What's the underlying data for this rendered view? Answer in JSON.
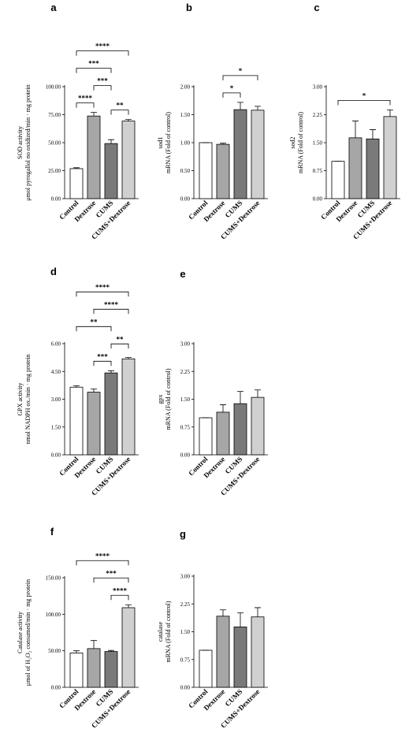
{
  "chart_data": [
    {
      "type": "bar",
      "panel": "a",
      "ylabel": [
        "SOD activity",
        "μmol pyrogallol no oxidized/min · mg protein"
      ],
      "categories": [
        "Control",
        "Dextrose",
        "CUMS",
        "CUMS+Dextrose"
      ],
      "values": [
        26.8,
        73.8,
        49.2,
        69.3
      ],
      "errors": [
        0.8,
        3.2,
        3.5,
        1.4
      ],
      "colors": [
        "#ffffff",
        "#a6a6a6",
        "#7a7a7a",
        "#d0d0d0"
      ],
      "ylim": [
        0,
        100
      ],
      "yticks": [
        {
          "value": 0,
          "label": "0.00"
        },
        {
          "value": 25,
          "label": "25.00"
        },
        {
          "value": 50,
          "label": "50.00"
        },
        {
          "value": 75,
          "label": "75.00"
        },
        {
          "value": 100,
          "label": "100.00"
        }
      ],
      "significance": [
        {
          "pair": [
            0,
            1
          ],
          "label": "****"
        },
        {
          "pair": [
            2,
            3
          ],
          "label": "**"
        },
        {
          "pair": [
            1,
            2
          ],
          "label": "***"
        },
        {
          "pair": [
            0,
            2
          ],
          "label": "***"
        },
        {
          "pair": [
            0,
            3
          ],
          "label": "****"
        }
      ]
    },
    {
      "type": "bar",
      "panel": "b",
      "ylabel": [
        "sod1",
        "mRNA (Fold of control)"
      ],
      "categories": [
        "Control",
        "Dextrose",
        "CUMS",
        "CUMS+Dextrose"
      ],
      "values": [
        1.0,
        0.97,
        1.59,
        1.58
      ],
      "errors": [
        0,
        0.02,
        0.13,
        0.07
      ],
      "colors": [
        "#ffffff",
        "#a6a6a6",
        "#7a7a7a",
        "#d0d0d0"
      ],
      "ylim": [
        0,
        2
      ],
      "yticks": [
        {
          "value": 0,
          "label": "0.00"
        },
        {
          "value": 0.5,
          "label": "0.50"
        },
        {
          "value": 1,
          "label": "1.00"
        },
        {
          "value": 1.5,
          "label": "1.50"
        },
        {
          "value": 2,
          "label": "2.00"
        }
      ],
      "significance": [
        {
          "pair": [
            1,
            2
          ],
          "label": "*"
        },
        {
          "pair": [
            1,
            3
          ],
          "label": "*"
        }
      ]
    },
    {
      "type": "bar",
      "panel": "c",
      "ylabel": [
        "sod2",
        "mRNA (Fold of control)"
      ],
      "categories": [
        "Control",
        "Dextrose",
        "CUMS",
        "CUMS+Dextrose"
      ],
      "values": [
        1.0,
        1.63,
        1.6,
        2.2
      ],
      "errors": [
        0,
        0.45,
        0.25,
        0.18
      ],
      "colors": [
        "#ffffff",
        "#a6a6a6",
        "#7a7a7a",
        "#d0d0d0"
      ],
      "ylim": [
        0,
        3
      ],
      "yticks": [
        {
          "value": 0,
          "label": "0.00"
        },
        {
          "value": 0.75,
          "label": "0.75"
        },
        {
          "value": 1.5,
          "label": "1.50"
        },
        {
          "value": 2.25,
          "label": "2.25"
        },
        {
          "value": 3,
          "label": "3.00"
        }
      ],
      "significance": [
        {
          "pair": [
            0,
            3
          ],
          "label": "*"
        }
      ]
    },
    {
      "type": "bar",
      "panel": "d",
      "ylabel": [
        "GPX activity",
        "nmol NADPH ox./min · mg protein"
      ],
      "categories": [
        "Control",
        "Dextrose",
        "CUMS",
        "CUMS+Dextrose"
      ],
      "values": [
        3.65,
        3.38,
        4.42,
        5.18
      ],
      "errors": [
        0.08,
        0.18,
        0.12,
        0.07
      ],
      "colors": [
        "#ffffff",
        "#a6a6a6",
        "#7a7a7a",
        "#d0d0d0"
      ],
      "ylim": [
        0,
        6
      ],
      "yticks": [
        {
          "value": 0,
          "label": "0.00"
        },
        {
          "value": 1.5,
          "label": "1.50"
        },
        {
          "value": 3,
          "label": "3.00"
        },
        {
          "value": 4.5,
          "label": "4.50"
        },
        {
          "value": 6,
          "label": "6.00"
        }
      ],
      "significance": [
        {
          "pair": [
            1,
            2
          ],
          "label": "***"
        },
        {
          "pair": [
            2,
            3
          ],
          "label": "**"
        },
        {
          "pair": [
            0,
            2
          ],
          "label": "**"
        },
        {
          "pair": [
            1,
            3
          ],
          "label": "****"
        },
        {
          "pair": [
            0,
            3
          ],
          "label": "****"
        }
      ]
    },
    {
      "type": "bar",
      "panel": "e",
      "ylabel": [
        "gpx",
        "mRNA (Fold of control)"
      ],
      "categories": [
        "Control",
        "Dextrose",
        "CUMS",
        "CUMS+Dextrose"
      ],
      "values": [
        1.0,
        1.15,
        1.38,
        1.55
      ],
      "errors": [
        0,
        0.2,
        0.33,
        0.2
      ],
      "colors": [
        "#ffffff",
        "#a6a6a6",
        "#7a7a7a",
        "#d0d0d0"
      ],
      "ylim": [
        0,
        3
      ],
      "yticks": [
        {
          "value": 0,
          "label": "0.00"
        },
        {
          "value": 0.75,
          "label": "0.75"
        },
        {
          "value": 1.5,
          "label": "1.50"
        },
        {
          "value": 2.25,
          "label": "2.25"
        },
        {
          "value": 3,
          "label": "3.00"
        }
      ],
      "significance": []
    },
    {
      "type": "bar",
      "panel": "f",
      "ylabel": [
        "Catalase activity",
        "μmol of H₂O₂ consumed/min · mg protein"
      ],
      "categories": [
        "Control",
        "Dextrose",
        "CUMS",
        "CUMS+Dextrose"
      ],
      "values": [
        47,
        53,
        49,
        109
      ],
      "errors": [
        3,
        11,
        1.5,
        4
      ],
      "colors": [
        "#ffffff",
        "#a6a6a6",
        "#7a7a7a",
        "#d0d0d0"
      ],
      "ylim": [
        0,
        150
      ],
      "yticks": [
        {
          "value": 0,
          "label": "0.00"
        },
        {
          "value": 50,
          "label": "50.00"
        },
        {
          "value": 100,
          "label": "100.00"
        },
        {
          "value": 150,
          "label": "150.00"
        }
      ],
      "significance": [
        {
          "pair": [
            2,
            3
          ],
          "label": "****"
        },
        {
          "pair": [
            1,
            3
          ],
          "label": "***"
        },
        {
          "pair": [
            0,
            3
          ],
          "label": "****"
        }
      ]
    },
    {
      "type": "bar",
      "panel": "g",
      "ylabel": [
        "catalase",
        "mRNA (Fold of control)"
      ],
      "categories": [
        "Control",
        "Dextrose",
        "CUMS",
        "CUMS+Dextrose"
      ],
      "values": [
        1.0,
        1.92,
        1.63,
        1.9
      ],
      "errors": [
        0,
        0.17,
        0.38,
        0.25
      ],
      "colors": [
        "#ffffff",
        "#a6a6a6",
        "#7a7a7a",
        "#d0d0d0"
      ],
      "ylim": [
        0,
        3
      ],
      "yticks": [
        {
          "value": 0,
          "label": "0.00"
        },
        {
          "value": 0.75,
          "label": "0.75"
        },
        {
          "value": 1.5,
          "label": "1.50"
        },
        {
          "value": 2.25,
          "label": "2.25"
        },
        {
          "value": 3,
          "label": "3.00"
        }
      ],
      "significance": []
    }
  ]
}
